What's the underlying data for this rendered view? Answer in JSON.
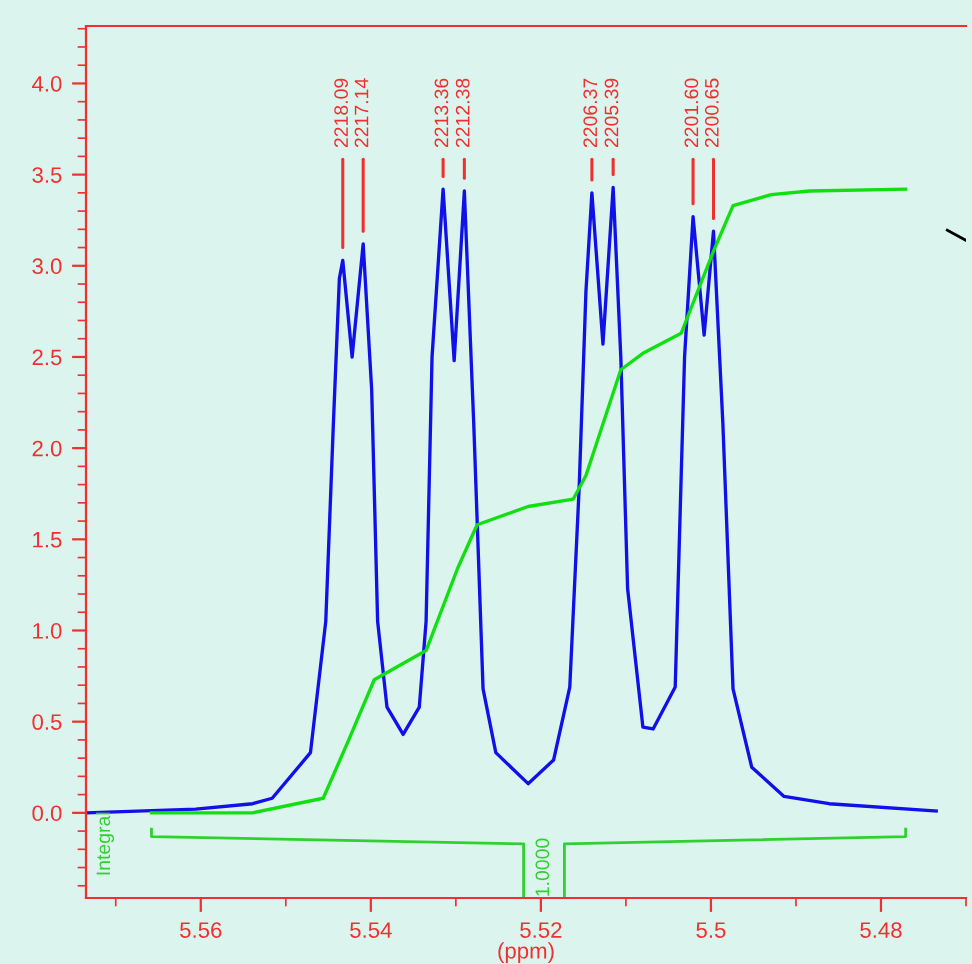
{
  "chart_data": {
    "type": "line",
    "xlabel": "(ppm)",
    "xlim": [
      5.5735,
      5.47
    ],
    "ylim": [
      -0.467,
      4.315
    ],
    "xticks": [
      5.56,
      5.54,
      5.52,
      5.5,
      5.48
    ],
    "yticks": [
      {
        "value": 0,
        "label": "0.0"
      },
      {
        "value": 0.5,
        "label": "0.5"
      },
      {
        "value": 1,
        "label": "1.0"
      },
      {
        "value": 1.5,
        "label": "1.5"
      },
      {
        "value": 2,
        "label": "2.0"
      },
      {
        "value": 2.5,
        "label": "2.5"
      },
      {
        "value": 3,
        "label": "3.0"
      },
      {
        "value": 3.5,
        "label": "3.5"
      },
      {
        "value": 4,
        "label": "4.0"
      }
    ],
    "grid": false,
    "legend": false,
    "series": [
      {
        "color": "#1010e8",
        "x": [
          5.5735,
          5.5606,
          5.5539,
          5.5516,
          5.5471,
          5.5453,
          5.5444,
          5.5437,
          5.5433,
          5.5422,
          5.5409,
          5.5399,
          5.5392,
          5.5381,
          5.5362,
          5.5343,
          5.5335,
          5.5328,
          5.5315,
          5.5302,
          5.529,
          5.5279,
          5.5268,
          5.5253,
          5.5215,
          5.5185,
          5.5166,
          5.5155,
          5.5147,
          5.514,
          5.5127,
          5.5115,
          5.5106,
          5.5098,
          5.508,
          5.5068,
          5.5042,
          5.5031,
          5.5021,
          5.5008,
          5.4997,
          5.4986,
          5.4974,
          5.4952,
          5.4914,
          5.4861,
          5.4735
        ],
        "values": [
          0.0,
          0.02,
          0.05,
          0.08,
          0.33,
          1.05,
          2.14,
          2.93,
          3.03,
          2.5,
          3.12,
          2.32,
          1.05,
          0.58,
          0.43,
          0.58,
          1.05,
          2.5,
          3.42,
          2.48,
          3.41,
          2.14,
          0.68,
          0.33,
          0.16,
          0.29,
          0.69,
          1.78,
          2.86,
          3.4,
          2.57,
          3.43,
          2.5,
          1.23,
          0.47,
          0.46,
          0.69,
          2.5,
          3.27,
          2.62,
          3.19,
          2.14,
          0.68,
          0.25,
          0.09,
          0.05,
          0.01
        ]
      },
      {
        "color": "#10e010",
        "x": [
          5.5658,
          5.5539,
          5.5456,
          5.5426,
          5.5396,
          5.5335,
          5.5298,
          5.5275,
          5.5215,
          5.5162,
          5.5147,
          5.5106,
          5.508,
          5.5035,
          5.4997,
          5.4974,
          5.4929,
          5.4884,
          5.4771
        ],
        "values": [
          0.0,
          0.0,
          0.08,
          0.4,
          0.73,
          0.89,
          1.34,
          1.58,
          1.68,
          1.72,
          1.85,
          2.43,
          2.52,
          2.63,
          3.08,
          3.33,
          3.39,
          3.41,
          3.42
        ]
      }
    ],
    "annotations": [
      {
        "text": "2218.09",
        "x": 5.5433,
        "y": 3.03
      },
      {
        "text": "2217.14",
        "x": 5.5409,
        "y": 3.12
      },
      {
        "text": "2213.36",
        "x": 5.5315,
        "y": 3.42
      },
      {
        "text": "2212.38",
        "x": 5.529,
        "y": 3.41
      },
      {
        "text": "2206.37",
        "x": 5.514,
        "y": 3.4
      },
      {
        "text": "2205.39",
        "x": 5.5115,
        "y": 3.43
      },
      {
        "text": "2201.60",
        "x": 5.5021,
        "y": 3.27
      },
      {
        "text": "2200.65",
        "x": 5.4997,
        "y": 3.19
      },
      "1.0000",
      "Integral"
    ]
  }
}
